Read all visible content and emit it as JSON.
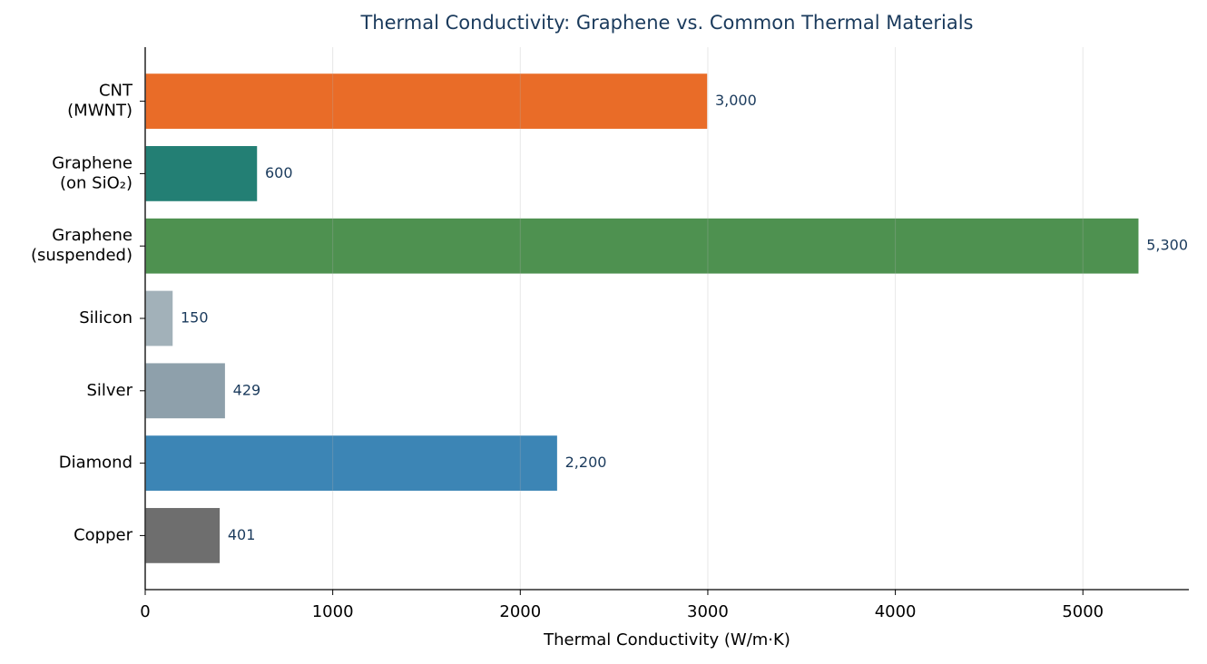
{
  "chart_data": {
    "type": "barh",
    "title": "Thermal Conductivity: Graphene vs. Common Thermal Materials",
    "x_label": "Thermal Conductivity (W/m·K)",
    "categories": [
      "CNT\n(MWNT)",
      "Graphene\n(on SiO₂)",
      "Graphene\n(suspended)",
      "Silicon",
      "Silver",
      "Diamond",
      "Copper"
    ],
    "values": [
      3000,
      600,
      5300,
      150,
      429,
      2200,
      401
    ],
    "value_labels": [
      "3,000",
      "600",
      "5,300",
      "150",
      "429",
      "2,200",
      "401"
    ],
    "colors": [
      "#e96c28",
      "#237f74",
      "#4e9150",
      "#a2b1b9",
      "#8ea0ab",
      "#3c85b5",
      "#6e6e6e"
    ],
    "xlim": [
      0,
      5565
    ],
    "xticks": [
      0,
      1000,
      2000,
      3000,
      4000,
      5000
    ],
    "grid": true
  }
}
